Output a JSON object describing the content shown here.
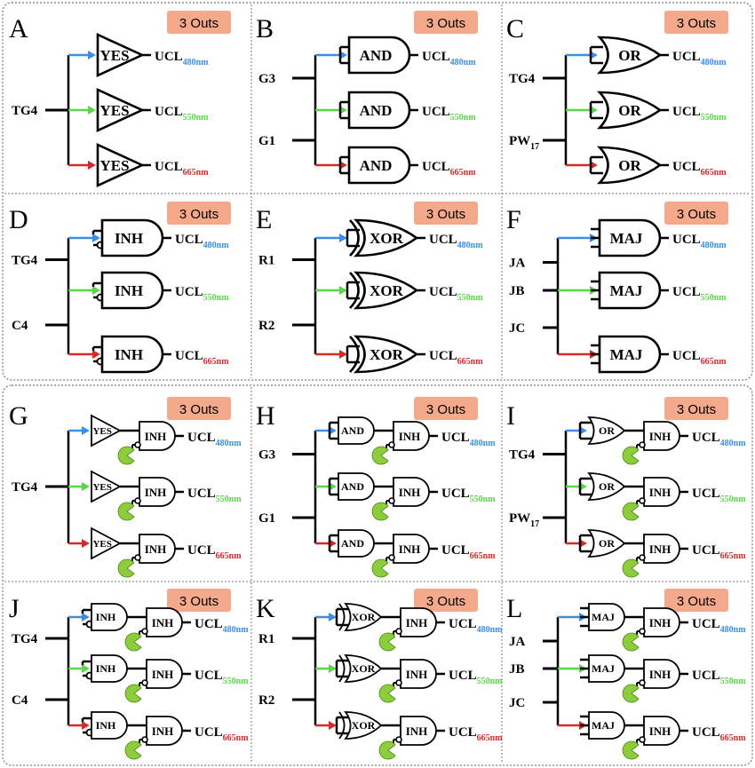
{
  "badge_label": "3 Outs",
  "output_prefix": "UCL",
  "wavelengths": [
    "480nm",
    "550nm",
    "665nm"
  ],
  "colors": {
    "blue": "#3a8ee6",
    "green": "#5ad64a",
    "red": "#d42a2a",
    "badge_fill": "#f4a98a",
    "frame": "#777777",
    "pacman": "#8dcc3a"
  },
  "panels": [
    {
      "letter": "A",
      "inputs": [
        "TG4"
      ],
      "gate": "YES",
      "inh": false
    },
    {
      "letter": "B",
      "inputs": [
        "G3",
        "G1"
      ],
      "gate": "AND",
      "inh": false
    },
    {
      "letter": "C",
      "inputs": [
        "TG4",
        "PW17"
      ],
      "gate": "OR",
      "inh": false
    },
    {
      "letter": "D",
      "inputs": [
        "TG4",
        "C4"
      ],
      "gate": "INH",
      "inh": false
    },
    {
      "letter": "E",
      "inputs": [
        "R1",
        "R2"
      ],
      "gate": "XOR",
      "inh": false
    },
    {
      "letter": "F",
      "inputs": [
        "JA",
        "JB",
        "JC"
      ],
      "gate": "MAJ",
      "inh": false
    },
    {
      "letter": "G",
      "inputs": [
        "TG4"
      ],
      "gate": "YES",
      "inh": true
    },
    {
      "letter": "H",
      "inputs": [
        "G3",
        "G1"
      ],
      "gate": "AND",
      "inh": true
    },
    {
      "letter": "I",
      "inputs": [
        "TG4",
        "PW17"
      ],
      "gate": "OR",
      "inh": true
    },
    {
      "letter": "J",
      "inputs": [
        "TG4",
        "C4"
      ],
      "gate": "INH",
      "inh": true
    },
    {
      "letter": "K",
      "inputs": [
        "R1",
        "R2"
      ],
      "gate": "XOR",
      "inh": true
    },
    {
      "letter": "L",
      "inputs": [
        "JA",
        "JB",
        "JC"
      ],
      "gate": "MAJ",
      "inh": true
    }
  ],
  "inh_label": "INH"
}
